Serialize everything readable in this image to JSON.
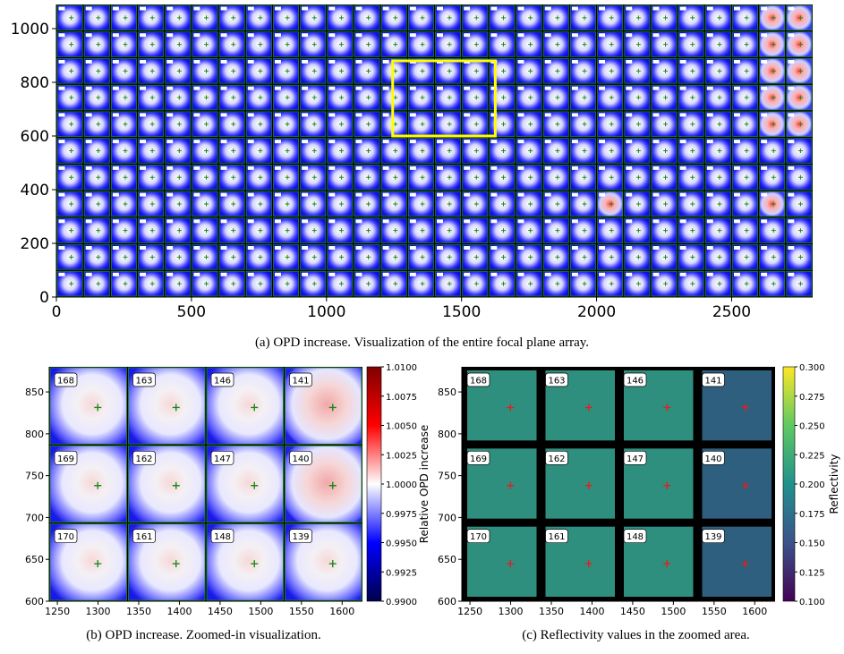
{
  "captions": {
    "a": "(a) OPD increase. Visualization of the entire focal plane array.",
    "b": "(b) OPD increase. Zoomed-in visualization.",
    "c": "(c) Reflectivity values in the zoomed area."
  },
  "colors": {
    "tile_blue": "#1a1aff",
    "tile_white": "#ffffff",
    "tile_red": "#e03030",
    "grid_green": "#1f8f1f",
    "highlight_yellow": "#ffff00",
    "viridis_mid": "#2f8f7f"
  },
  "chart_data": [
    {
      "id": "a",
      "type": "heatmap",
      "title": "",
      "xlabel": "",
      "ylabel": "",
      "xlim": [
        0,
        2800
      ],
      "ylim": [
        0,
        1090
      ],
      "x_ticks": [
        "0",
        "500",
        "1000",
        "1500",
        "2000",
        "2500"
      ],
      "x_tick_values": [
        0,
        500,
        1000,
        1500,
        2000,
        2500
      ],
      "y_ticks": [
        "0",
        "200",
        "400",
        "600",
        "800",
        "1000"
      ],
      "y_tick_values": [
        0,
        200,
        400,
        600,
        800,
        1000
      ],
      "tile_grid": {
        "columns": 28,
        "rows": 11
      },
      "highlight_region": {
        "x": [
          1245,
          1625
        ],
        "y": [
          600,
          880
        ],
        "color": "yellow"
      }
    },
    {
      "id": "b",
      "type": "heatmap",
      "xlim": [
        1240,
        1625
      ],
      "ylim": [
        600,
        880
      ],
      "x_ticks": [
        "1250",
        "1300",
        "1350",
        "1400",
        "1450",
        "1500",
        "1550",
        "1600"
      ],
      "x_tick_values": [
        1250,
        1300,
        1350,
        1400,
        1450,
        1500,
        1550,
        1600
      ],
      "y_ticks": [
        "600",
        "650",
        "700",
        "750",
        "800",
        "850"
      ],
      "y_tick_values": [
        600,
        650,
        700,
        750,
        800,
        850
      ],
      "tiles": [
        [
          "168",
          "163",
          "146",
          "141"
        ],
        [
          "169",
          "162",
          "147",
          "140"
        ],
        [
          "170",
          "161",
          "148",
          "139"
        ]
      ],
      "colorbar": {
        "label": "Relative OPD increase",
        "range": [
          0.99,
          1.01
        ],
        "ticks": [
          "1.0100",
          "1.0075",
          "1.0050",
          "1.0025",
          "1.0000",
          "0.9975",
          "0.9950",
          "0.9925",
          "0.9900"
        ],
        "tick_values": [
          1.01,
          1.0075,
          1.005,
          1.0025,
          1.0,
          0.9975,
          0.995,
          0.9925,
          0.99
        ],
        "colormap": "seismic"
      }
    },
    {
      "id": "c",
      "type": "heatmap",
      "xlim": [
        1240,
        1625
      ],
      "ylim": [
        600,
        880
      ],
      "x_ticks": [
        "1250",
        "1300",
        "1350",
        "1400",
        "1450",
        "1500",
        "1550",
        "1600"
      ],
      "x_tick_values": [
        1250,
        1300,
        1350,
        1400,
        1450,
        1500,
        1550,
        1600
      ],
      "y_ticks": [
        "600",
        "650",
        "700",
        "750",
        "800",
        "850"
      ],
      "y_tick_values": [
        600,
        650,
        700,
        750,
        800,
        850
      ],
      "tiles": [
        [
          "168",
          "163",
          "146",
          "141"
        ],
        [
          "169",
          "162",
          "147",
          "140"
        ],
        [
          "170",
          "161",
          "148",
          "139"
        ]
      ],
      "colorbar": {
        "label": "Reflectivity",
        "range": [
          0.1,
          0.3
        ],
        "ticks": [
          "0.300",
          "0.275",
          "0.250",
          "0.225",
          "0.200",
          "0.175",
          "0.150",
          "0.125",
          "0.100"
        ],
        "tick_values": [
          0.3,
          0.275,
          0.25,
          0.225,
          0.2,
          0.175,
          0.15,
          0.125,
          0.1
        ],
        "colormap": "viridis"
      }
    }
  ]
}
